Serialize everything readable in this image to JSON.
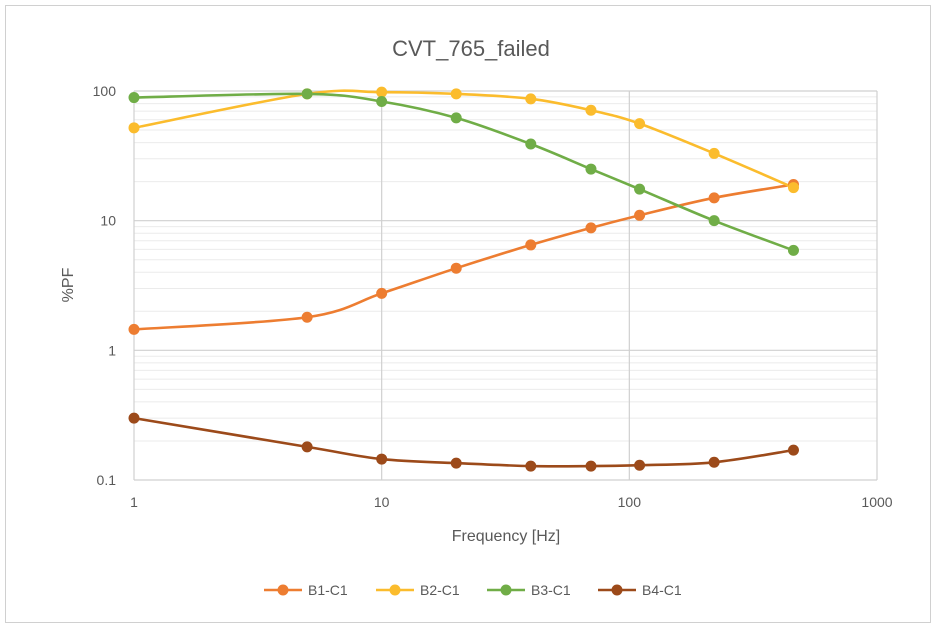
{
  "chart_data": {
    "type": "line",
    "title": "CVT_765_failed",
    "xlabel": "Frequency [Hz]",
    "ylabel": "%PF",
    "x_scale": "log",
    "y_scale": "log",
    "xlim": [
      1,
      1000
    ],
    "ylim": [
      0.1,
      100
    ],
    "x_ticks": [
      "1",
      "10",
      "100",
      "1000"
    ],
    "y_ticks": [
      "0.1",
      "1",
      "10",
      "100"
    ],
    "grid": true,
    "legend_position": "bottom",
    "series": [
      {
        "name": "B1-C1",
        "color": "#ed7d31",
        "x": [
          1,
          5,
          10,
          20,
          40,
          70,
          110,
          220,
          460
        ],
        "y": [
          1.45,
          1.8,
          2.75,
          4.3,
          6.5,
          8.8,
          11,
          15,
          19
        ]
      },
      {
        "name": "B2-C1",
        "color": "#fbbc2d",
        "x": [
          1,
          5,
          10,
          20,
          40,
          70,
          110,
          220,
          460
        ],
        "y": [
          52,
          95,
          98,
          95,
          87,
          71,
          56,
          33,
          18
        ]
      },
      {
        "name": "B3-C1",
        "color": "#70ad47",
        "x": [
          1,
          5,
          10,
          20,
          40,
          70,
          110,
          220,
          460
        ],
        "y": [
          89,
          95,
          83,
          62,
          39,
          25,
          17.5,
          10,
          5.9
        ]
      },
      {
        "name": "B4-C1",
        "color": "#9c4a1a",
        "x": [
          1,
          5,
          10,
          20,
          40,
          70,
          110,
          220,
          460
        ],
        "y": [
          0.3,
          0.18,
          0.145,
          0.135,
          0.128,
          0.128,
          0.13,
          0.137,
          0.17
        ]
      }
    ]
  }
}
